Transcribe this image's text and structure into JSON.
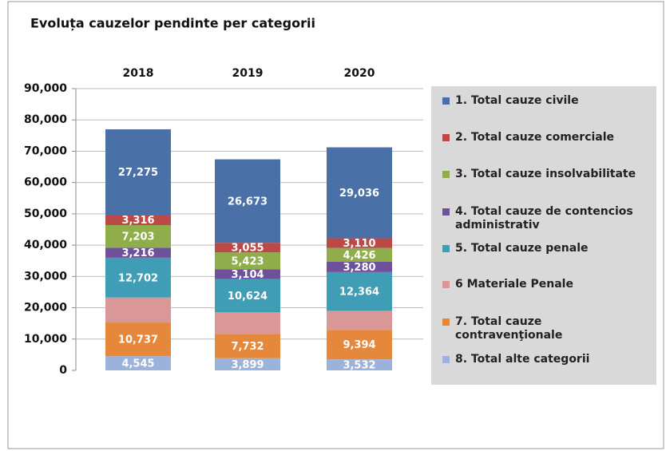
{
  "chart_data": {
    "type": "stacked_bar",
    "title": "Evoluța cauzelor pendinte per categorii",
    "categories": [
      "2018",
      "2019",
      "2020"
    ],
    "ylim": [
      0,
      90000
    ],
    "yticks": [
      0,
      {
        "value": 10000,
        "label": "10,000"
      },
      {
        "value": 20000,
        "label": "20,000"
      },
      {
        "value": 30000,
        "label": "30,000"
      },
      {
        "value": 40000,
        "label": "40,000"
      },
      {
        "value": 50000,
        "label": "50,000"
      },
      {
        "value": 60000,
        "label": "60,000"
      },
      {
        "value": 70000,
        "label": "70,000"
      },
      {
        "value": 80000,
        "label": "80,000"
      },
      {
        "value": 90000,
        "label": "90,000"
      }
    ],
    "legend": "right",
    "series": [
      {
        "name": "1. Total cauze civile",
        "color": "#4a70a8",
        "values": [
          27275,
          26673,
          29036
        ],
        "value_labels": [
          "27,275",
          "26,673",
          "29,036"
        ]
      },
      {
        "name": "2. Total cauze comerciale",
        "color": "#bb4a47",
        "values": [
          3316,
          3055,
          3110
        ],
        "value_labels": [
          "3,316",
          "3,055",
          "3,110"
        ]
      },
      {
        "name": "3. Total cauze insolvabilitate",
        "color": "#8fae4b",
        "values": [
          7203,
          5423,
          4426
        ],
        "value_labels": [
          "7,203",
          "5,423",
          "4,426"
        ]
      },
      {
        "name": "4. Total cauze de contencios administrativ",
        "color": "#6e519a",
        "values": [
          3216,
          3104,
          3280
        ],
        "value_labels": [
          "3,216",
          "3,104",
          "3,280"
        ]
      },
      {
        "name": "5. Total cauze penale",
        "color": "#3f9db5",
        "values": [
          12702,
          10624,
          12364
        ],
        "value_labels": [
          "12,702",
          "10,624",
          "12,364"
        ]
      },
      {
        "name": "6 Materiale Penale",
        "color": "#d99897",
        "values": [
          8000,
          6900,
          6100
        ]
      },
      {
        "name": "7. Total cauze contravenţionale",
        "color": "#e5883b",
        "values": [
          10737,
          7732,
          9394
        ],
        "value_labels": [
          "10,737",
          "7,732",
          "9,394"
        ]
      },
      {
        "name": "8. Total alte categorii",
        "color": "#9bb2da",
        "values": [
          4545,
          3899,
          3532
        ],
        "value_labels": [
          "4,545",
          "3,899",
          "3,532"
        ]
      }
    ]
  }
}
